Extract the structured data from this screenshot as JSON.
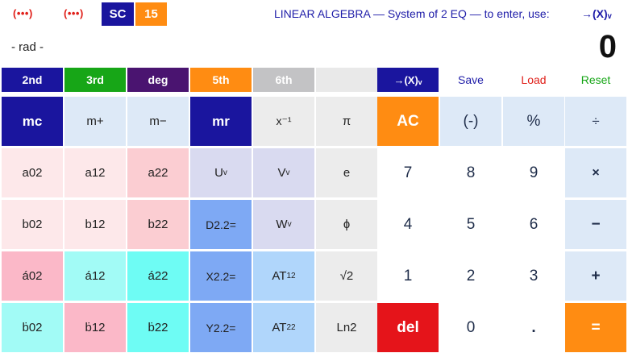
{
  "top": {
    "memory1": "(•••)",
    "memory2": "(•••)",
    "mode_badge": "SC",
    "precision_badge": "15",
    "hint": "LINEAR ALGEBRA — System of 2 EQ — to enter, use:",
    "hint_arrow": "→(X)ᵥ"
  },
  "display": {
    "angle_mode": "- rad -",
    "value": "0"
  },
  "function_row": [
    {
      "label": "2nd",
      "bg": "#1a159e"
    },
    {
      "label": "3rd",
      "bg": "#17a617"
    },
    {
      "label": "deg",
      "bg": "#4a1470"
    },
    {
      "label": "5th",
      "bg": "#ff8c12"
    },
    {
      "label": "6th",
      "bg": "#c3c3c5"
    },
    {
      "label": "",
      "bg": "#e9e9e9"
    },
    {
      "label": "→(X)ᵥ",
      "bg": "#1a159e"
    },
    {
      "label": "Save",
      "color": "#1e1ca8"
    },
    {
      "label": "Load",
      "color": "#e0201a"
    },
    {
      "label": "Reset",
      "color": "#17a617"
    }
  ],
  "keys": {
    "row1": [
      "mc",
      "m+",
      "m−",
      "mr",
      "x⁻¹",
      "π",
      "AC",
      "(-)",
      "%",
      "÷"
    ],
    "row2": [
      "a02",
      "a12",
      "a22",
      "U",
      "V",
      "e",
      "7",
      "8",
      "9",
      "×"
    ],
    "row3": [
      "b02",
      "b12",
      "b22",
      "D2.2=",
      "W",
      "ɸ",
      "4",
      "5",
      "6",
      "−"
    ],
    "row4": [
      "á02",
      "á12",
      "á22",
      "X2.2=",
      "AT",
      "√2",
      "1",
      "2",
      "3",
      "+"
    ],
    "row5": [
      "ḃ02",
      "ḃ12",
      "ḃ22",
      "Y2.2=",
      "AT",
      "Ln2",
      "del",
      "0",
      ".",
      "="
    ],
    "subscripts": {
      "v": "v",
      "at12": "12",
      "at22": "22"
    }
  },
  "colors": {
    "navy": "#1a159e",
    "orange": "#ff8c12",
    "red": "#e5141a",
    "light_blue": "#dde9f7",
    "pink_light": "#fde8ea",
    "pink_mid": "#fbcdd2",
    "pink_strong": "#fbb8c8",
    "cyan_light": "#a2fbf6",
    "cyan": "#6efcf4",
    "lavender": "#d9daf0",
    "blue_mid": "#7ea9f4",
    "blue_light": "#b0d6fb",
    "grey": "#ececec"
  }
}
